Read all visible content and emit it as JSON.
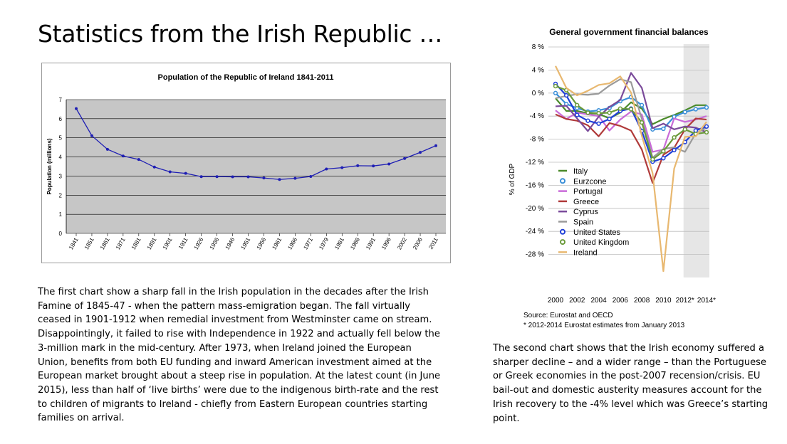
{
  "slide": {
    "title": "Statistics from the Irish Republic …"
  },
  "chart_data": [
    {
      "type": "line",
      "title": "Population of the Republic of Ireland 1841-2011",
      "xlabel": "",
      "ylabel": "Population (millions)",
      "ylim": [
        0,
        7
      ],
      "yticks": [
        "0",
        "1",
        "2",
        "3",
        "4",
        "5",
        "6",
        "7"
      ],
      "grid": true,
      "categories": [
        "1841",
        "1851",
        "1861",
        "1871",
        "1881",
        "1891",
        "1901",
        "1911",
        "1926",
        "1936",
        "1946",
        "1951",
        "1956",
        "1961",
        "1966",
        "1971",
        "1979",
        "1981",
        "1986",
        "1991",
        "1996",
        "2002",
        "2006",
        "2011"
      ],
      "series": [
        {
          "name": "Population",
          "color": "#1f1fb4",
          "values": [
            6.53,
            5.11,
            4.4,
            4.05,
            3.87,
            3.47,
            3.22,
            3.14,
            2.97,
            2.97,
            2.96,
            2.96,
            2.9,
            2.82,
            2.88,
            2.98,
            3.37,
            3.44,
            3.54,
            3.53,
            3.63,
            3.92,
            4.24,
            4.59
          ]
        }
      ]
    },
    {
      "type": "line",
      "title": "General government financial balances",
      "ylabel": "% of GDP",
      "ylim": [
        -32,
        8
      ],
      "yticks": [
        "8 %",
        "4 %",
        "0 %",
        "-4 %",
        "-8 %",
        "-12 %",
        "-16 %",
        "-20 %",
        "-24 %",
        "-28 %"
      ],
      "xticks": [
        "2000",
        "2002",
        "2004",
        "2006",
        "2008",
        "2010",
        "2012*",
        "2014*"
      ],
      "x": [
        2000,
        2001,
        2002,
        2003,
        2004,
        2005,
        2006,
        2007,
        2008,
        2009,
        2010,
        2011,
        2012,
        2013,
        2014
      ],
      "shaded_range": [
        2012,
        2014
      ],
      "legend_position": "right",
      "source": "Source: Eurostat and OECD",
      "note": "* 2012-2014 Eurostat estimates from January 2013",
      "series": [
        {
          "name": "Italy",
          "color": "#4a8a2a",
          "marker": "none",
          "values": [
            -0.9,
            -3.1,
            -3.1,
            -3.5,
            -3.6,
            -4.4,
            -3.4,
            -1.6,
            -2.7,
            -5.4,
            -4.5,
            -3.8,
            -3.0,
            -2.1,
            -2.1
          ]
        },
        {
          "name": "Eurzcone",
          "color": "#3a8fd8",
          "marker": "circle-open",
          "values": [
            0.0,
            -1.9,
            -2.6,
            -3.2,
            -3.0,
            -2.6,
            -1.4,
            -0.7,
            -2.1,
            -6.3,
            -6.2,
            -4.1,
            -3.3,
            -2.8,
            -2.5
          ]
        },
        {
          "name": "Portugal",
          "color": "#c86ad8",
          "marker": "none",
          "values": [
            -3.0,
            -4.5,
            -3.4,
            -3.7,
            -4.0,
            -6.5,
            -4.6,
            -3.2,
            -3.7,
            -10.2,
            -9.8,
            -4.4,
            -5.0,
            -4.6,
            -4.0
          ]
        },
        {
          "name": "Greece",
          "color": "#b03a3a",
          "marker": "none",
          "values": [
            -3.7,
            -4.5,
            -4.8,
            -5.6,
            -7.5,
            -5.2,
            -5.7,
            -6.5,
            -9.8,
            -15.6,
            -10.7,
            -9.5,
            -6.3,
            -4.4,
            -4.6
          ]
        },
        {
          "name": "Cyprus",
          "color": "#7a4a9a",
          "marker": "none",
          "values": [
            -2.3,
            -2.2,
            -4.4,
            -6.6,
            -4.1,
            -2.4,
            -1.2,
            3.5,
            0.9,
            -6.1,
            -5.3,
            -6.3,
            -5.8,
            -6.0,
            -6.8
          ]
        },
        {
          "name": "Spain",
          "color": "#9a9a9a",
          "marker": "none",
          "values": [
            -0.9,
            -0.5,
            -0.2,
            -0.3,
            -0.1,
            1.3,
            2.4,
            1.9,
            -4.5,
            -11.2,
            -9.7,
            -9.4,
            -10.2,
            -7.0,
            -6.0
          ]
        },
        {
          "name": "United States",
          "color": "#1f3fd8",
          "marker": "circle-open",
          "values": [
            1.6,
            -0.4,
            -3.8,
            -4.8,
            -5.3,
            -4.5,
            -3.1,
            -2.7,
            -6.6,
            -11.9,
            -11.3,
            -9.9,
            -8.5,
            -6.5,
            -5.8
          ]
        },
        {
          "name": "United Kingdom",
          "color": "#6a9a3a",
          "marker": "circle-open",
          "values": [
            1.2,
            0.5,
            -2.1,
            -3.4,
            -3.5,
            -3.4,
            -2.7,
            -2.8,
            -5.1,
            -11.5,
            -10.1,
            -7.7,
            -6.3,
            -7.1,
            -6.8
          ]
        },
        {
          "name": "Ireland",
          "color": "#e8b870",
          "marker": "none",
          "values": [
            4.7,
            0.9,
            -0.4,
            0.4,
            1.4,
            1.7,
            2.9,
            0.1,
            -7.4,
            -13.9,
            -30.9,
            -13.1,
            -7.6,
            -7.5,
            -5.0
          ]
        }
      ]
    }
  ],
  "paragraphs": {
    "left": [
      "The first chart show a sharp fall in the Irish population in the decades after the Irish",
      "Famine of 1845-47 - when the pattern mass-emigration began. The fall virtually",
      "ceased in 1901-1912 when remedial investment from Westminster came on stream.",
      "Disappointingly, it  failed to rise with Independence in 1922 and actually fell below the",
      "3-million mark in the mid-century.  After 1973, when Ireland joined the European",
      "Union, benefits from both EU funding and inward American investment aimed at the",
      "European market brought about a steep rise in population. At the latest count (in June",
      "2015), less than half of ‘live births’ were due to the indigenous birth-rate and the rest",
      "to children of migrants to Ireland - chiefly from Eastern European countries starting",
      "families on arrival."
    ],
    "right": [
      "The second chart shows that the Irish economy suffered a",
      "sharper decline – and a wider range – than the Portuguese",
      "or Greek economies in the post-2007 recension/crisis. EU",
      "bail-out and domestic austerity measures account for the",
      "Irish recovery to the -4% level which was Greece’s starting",
      "point."
    ]
  }
}
